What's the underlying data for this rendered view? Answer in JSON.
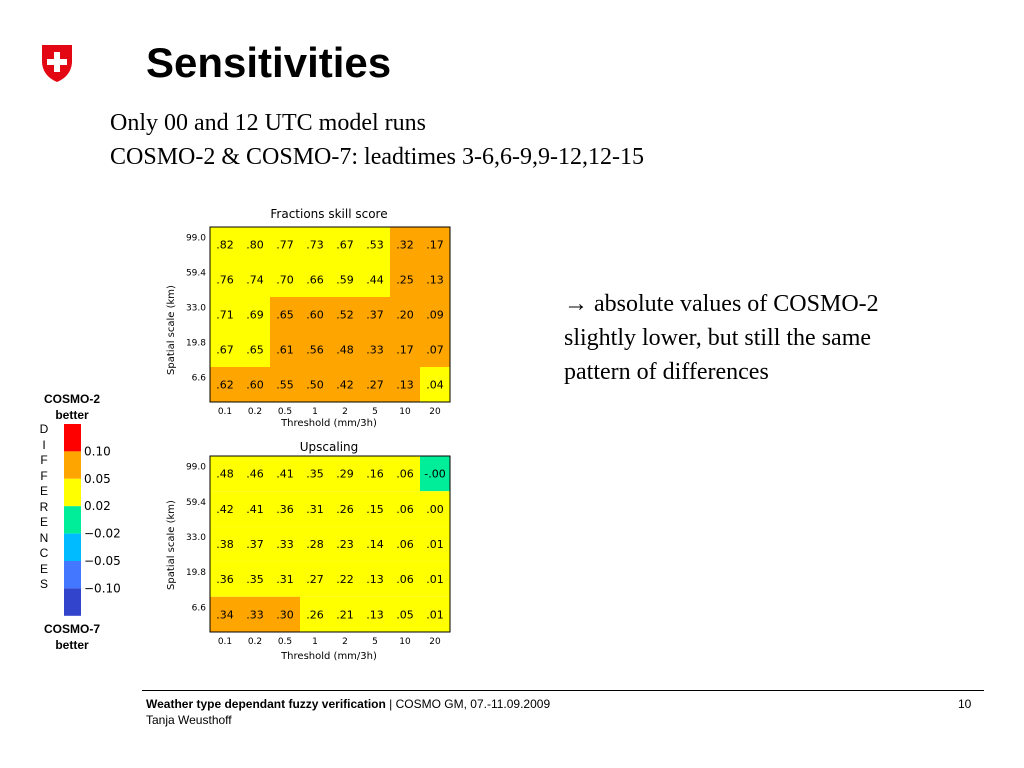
{
  "slide": {
    "title": "Sensitivities",
    "subtitle_lines": [
      "Only 00 and 12 UTC model runs",
      "COSMO-2 & COSMO-7: leadtimes 3-6,6-9,9-12,12-15"
    ],
    "note_lines": [
      "→ absolute values of COSMO-2",
      "slightly lower, but still the same",
      "pattern of differences"
    ],
    "logo_icon": "swiss-cross-shield-icon",
    "footer": {
      "bold": "Weather type dependant fuzzy verification",
      "rest": " | COSMO GM, 07.-11.09.2009",
      "author": "Tanja Weusthoff",
      "page": "10"
    }
  },
  "legend": {
    "top_label": [
      "COSMO-2",
      "better"
    ],
    "bottom_label": [
      "COSMO-7",
      "better"
    ],
    "vertical_word": [
      "D",
      "I",
      "F",
      "F",
      "E",
      "R",
      "E",
      "N",
      "C",
      "E",
      "S"
    ],
    "levels": [
      {
        "label": "0.10",
        "color": "#ff0000"
      },
      {
        "label": "0.05",
        "color": "#ffa500"
      },
      {
        "label": "0.02",
        "color": "#ffff00"
      },
      {
        "label": "−0.02",
        "color": "#00ee99"
      },
      {
        "label": "−0.05",
        "color": "#00bbff"
      },
      {
        "label": "−0.10",
        "color": "#4477ff"
      },
      {
        "label": "",
        "color": "#3344cc"
      }
    ]
  },
  "chart_data": [
    {
      "type": "heatmap",
      "title": "Fractions skill score",
      "xlabel": "Threshold (mm/3h)",
      "ylabel": "Spatial scale (km)",
      "x_ticks": [
        "0.1",
        "0.2",
        "0.5",
        "1",
        "2",
        "5",
        "10",
        "20"
      ],
      "y_ticks": [
        "99.0",
        "59.4",
        "33.0",
        "19.8",
        "6.6"
      ],
      "cells": [
        [
          ".82",
          ".80",
          ".77",
          ".73",
          ".67",
          ".53",
          ".32",
          ".17"
        ],
        [
          ".76",
          ".74",
          ".70",
          ".66",
          ".59",
          ".44",
          ".25",
          ".13"
        ],
        [
          ".71",
          ".69",
          ".65",
          ".60",
          ".52",
          ".37",
          ".20",
          ".09"
        ],
        [
          ".67",
          ".65",
          ".61",
          ".56",
          ".48",
          ".33",
          ".17",
          ".07"
        ],
        [
          ".62",
          ".60",
          ".55",
          ".50",
          ".42",
          ".27",
          ".13",
          ".04"
        ]
      ],
      "colors": [
        [
          "#ffff00",
          "#ffff00",
          "#ffff00",
          "#ffff00",
          "#ffff00",
          "#ffff00",
          "#ffa500",
          "#ffa500"
        ],
        [
          "#ffff00",
          "#ffff00",
          "#ffff00",
          "#ffff00",
          "#ffff00",
          "#ffff00",
          "#ffa500",
          "#ffa500"
        ],
        [
          "#ffff00",
          "#ffff00",
          "#ffa500",
          "#ffa500",
          "#ffa500",
          "#ffa500",
          "#ffa500",
          "#ffa500"
        ],
        [
          "#ffff00",
          "#ffff00",
          "#ffa500",
          "#ffa500",
          "#ffa500",
          "#ffa500",
          "#ffa500",
          "#ffa500"
        ],
        [
          "#ffa500",
          "#ffa500",
          "#ffa500",
          "#ffa500",
          "#ffa500",
          "#ffa500",
          "#ffa500",
          "#ffff00"
        ]
      ]
    },
    {
      "type": "heatmap",
      "title": "Upscaling",
      "xlabel": "Threshold (mm/3h)",
      "ylabel": "Spatial scale (km)",
      "x_ticks": [
        "0.1",
        "0.2",
        "0.5",
        "1",
        "2",
        "5",
        "10",
        "20"
      ],
      "y_ticks": [
        "99.0",
        "59.4",
        "33.0",
        "19.8",
        "6.6"
      ],
      "cells": [
        [
          ".48",
          ".46",
          ".41",
          ".35",
          ".29",
          ".16",
          ".06",
          "-.00"
        ],
        [
          ".42",
          ".41",
          ".36",
          ".31",
          ".26",
          ".15",
          ".06",
          ".00"
        ],
        [
          ".38",
          ".37",
          ".33",
          ".28",
          ".23",
          ".14",
          ".06",
          ".01"
        ],
        [
          ".36",
          ".35",
          ".31",
          ".27",
          ".22",
          ".13",
          ".06",
          ".01"
        ],
        [
          ".34",
          ".33",
          ".30",
          ".26",
          ".21",
          ".13",
          ".05",
          ".01"
        ]
      ],
      "colors": [
        [
          "#ffff00",
          "#ffff00",
          "#ffff00",
          "#ffff00",
          "#ffff00",
          "#ffff00",
          "#ffff00",
          "#00ee99"
        ],
        [
          "#ffff00",
          "#ffff00",
          "#ffff00",
          "#ffff00",
          "#ffff00",
          "#ffff00",
          "#ffff00",
          "#ffff00"
        ],
        [
          "#ffff00",
          "#ffff00",
          "#ffff00",
          "#ffff00",
          "#ffff00",
          "#ffff00",
          "#ffff00",
          "#ffff00"
        ],
        [
          "#ffff00",
          "#ffff00",
          "#ffff00",
          "#ffff00",
          "#ffff00",
          "#ffff00",
          "#ffff00",
          "#ffff00"
        ],
        [
          "#ffa500",
          "#ffa500",
          "#ffa500",
          "#ffff00",
          "#ffff00",
          "#ffff00",
          "#ffff00",
          "#ffff00"
        ]
      ]
    }
  ]
}
